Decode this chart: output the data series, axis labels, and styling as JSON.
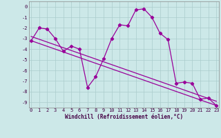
{
  "xlabel": "Windchill (Refroidissement éolien,°C)",
  "line_color": "#990099",
  "bg_color": "#cce8e8",
  "grid_color": "#aacccc",
  "x_data": [
    0,
    1,
    2,
    3,
    4,
    5,
    6,
    7,
    8,
    9,
    10,
    11,
    12,
    13,
    14,
    15,
    16,
    17,
    18,
    19,
    20,
    21,
    22,
    23
  ],
  "jagged_y": [
    -3.2,
    -2.0,
    -2.1,
    -3.0,
    -4.2,
    -3.7,
    -4.0,
    -7.6,
    -6.6,
    -4.9,
    -3.0,
    -1.7,
    -1.8,
    -0.3,
    -0.2,
    -1.0,
    -2.5,
    -3.1,
    -7.2,
    -7.1,
    -7.2,
    -8.7,
    -8.6,
    -9.3
  ],
  "trend1_x": [
    0,
    23
  ],
  "trend1_y": [
    -3.2,
    -9.3
  ],
  "trend2_x": [
    0,
    23
  ],
  "trend2_y": [
    -2.8,
    -8.9
  ],
  "ylim": [
    -9.5,
    0.5
  ],
  "xlim": [
    -0.3,
    23.3
  ],
  "xticks": [
    0,
    1,
    2,
    3,
    4,
    5,
    6,
    7,
    8,
    9,
    10,
    11,
    12,
    13,
    14,
    15,
    16,
    17,
    18,
    19,
    20,
    21,
    22,
    23
  ],
  "yticks": [
    0,
    -1,
    -2,
    -3,
    -4,
    -5,
    -6,
    -7,
    -8,
    -9
  ],
  "xlabel_fontsize": 5.5,
  "tick_fontsize": 5.0
}
